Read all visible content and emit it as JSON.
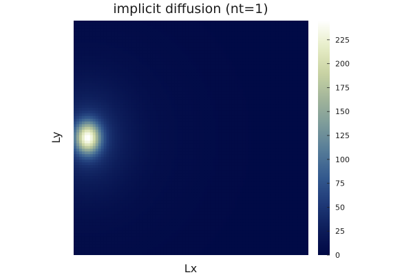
{
  "chart_data": {
    "type": "heatmap",
    "title": "implicit diffusion (nt=1)",
    "xlabel": "Lx",
    "ylabel": "Ly",
    "colorbar": {
      "min": 0,
      "max": 245,
      "ticks": [
        0,
        25,
        50,
        75,
        100,
        125,
        150,
        175,
        200,
        225
      ],
      "colormap": [
        "#000844",
        "#0d1d5a",
        "#1f3a78",
        "#345a8f",
        "#557b98",
        "#7c9b9a",
        "#a2b59a",
        "#c9d3a3",
        "#e7edc7",
        "#ffffff"
      ]
    },
    "field": {
      "description_peak_value": 245,
      "peak": {
        "x_fraction": 0.06,
        "y_fraction": 0.5
      },
      "background_value": 2
    },
    "grid": false,
    "x_ticks_shown": false,
    "y_ticks_shown": false
  }
}
